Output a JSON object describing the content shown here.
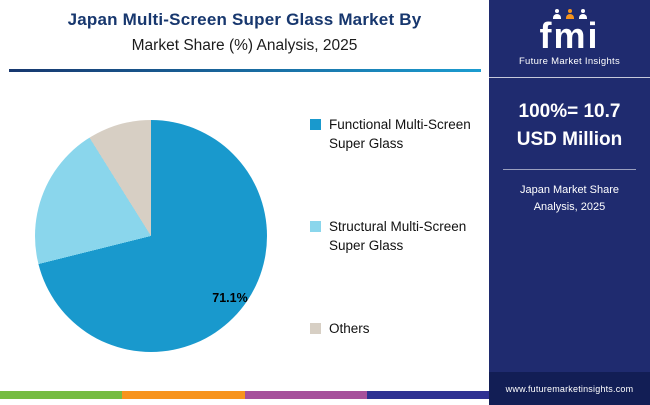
{
  "header": {
    "title_line1": "Japan Multi-Screen Super Glass Market By",
    "title_line2": "Market Share (%) Analysis, 2025"
  },
  "logo": {
    "text": "fmi",
    "subtitle": "Future Market Insights",
    "accent_color": "#f7941e"
  },
  "sidebar": {
    "stat_line1": "100%= 10.7",
    "stat_line2": "USD Million",
    "caption_line1": "Japan Market Share",
    "caption_line2": "Analysis, 2025",
    "website": "www.futuremarketinsights.com",
    "bg_color": "#1f2b6f",
    "footer_bg_color": "#121e55"
  },
  "chart_data": {
    "type": "pie",
    "title": "Japan Multi-Screen Super Glass Market By Market Share (%) Analysis, 2025",
    "legend_position": "right",
    "start_angle_deg": 0,
    "direction": "clockwise",
    "slices": [
      {
        "label": "Functional Multi-Screen Super Glass",
        "value": 71.1,
        "color": "#1999cd",
        "data_label": "71.1%"
      },
      {
        "label": "Structural Multi-Screen Super Glass",
        "value": 20.0,
        "color": "#8ad6ec",
        "data_label": ""
      },
      {
        "label": "Others",
        "value": 8.9,
        "color": "#d7cfc4",
        "data_label": ""
      }
    ],
    "annotations": [
      "71.1%"
    ]
  },
  "footer_strip": {
    "colors": [
      "#76bc43",
      "#f7941e",
      "#a6509b",
      "#2e3192"
    ]
  }
}
